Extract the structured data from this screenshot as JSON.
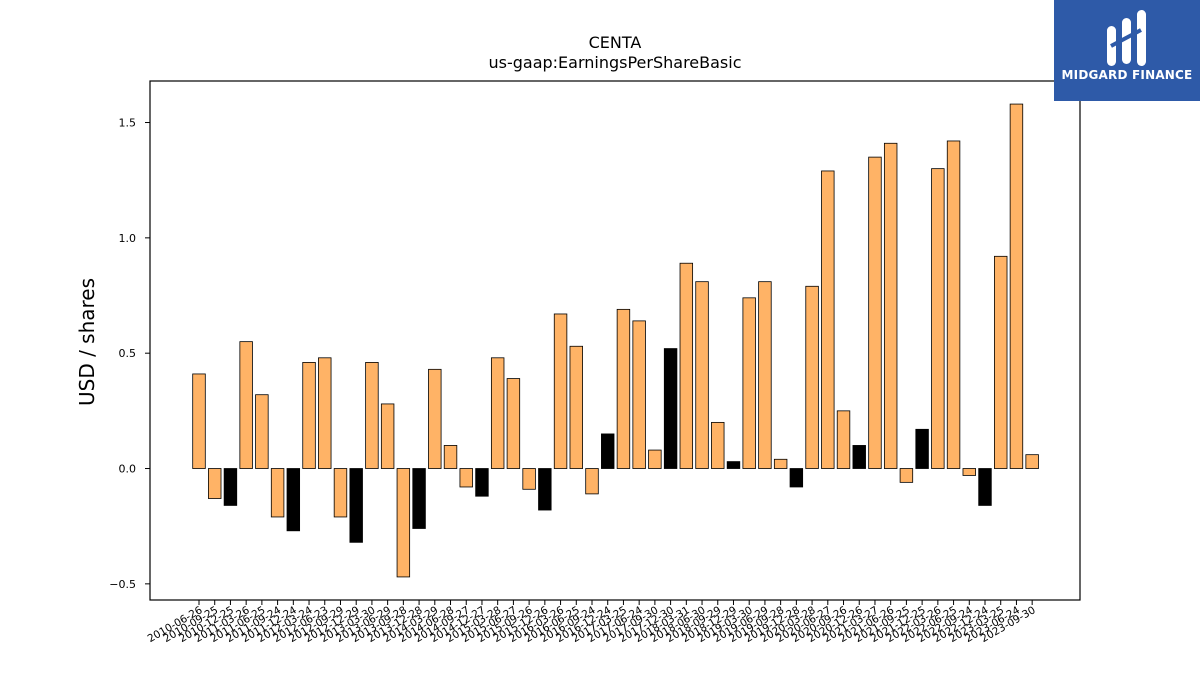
{
  "brand": {
    "name": "MIDGARD FINANCE"
  },
  "chart_data": {
    "type": "bar",
    "title": "CENTA",
    "subtitle": "us-gaap:EarningsPerShareBasic",
    "xlabel": "",
    "ylabel": "USD / shares",
    "ylim": [
      -0.57,
      1.68
    ],
    "yticks": [
      -0.5,
      0.0,
      0.5,
      1.0,
      1.5
    ],
    "ytick_labels": [
      "−0.5",
      "0.0",
      "0.5",
      "1.0",
      "1.5"
    ],
    "grid": false,
    "colors": {
      "default": "#ffb366",
      "highlight": "#000000",
      "edge": "#000000"
    },
    "categories": [
      "2010-06-26",
      "2010-09-25",
      "2010-12-25",
      "2011-03-26",
      "2011-06-25",
      "2011-09-24",
      "2011-12-24",
      "2012-03-24",
      "2012-06-23",
      "2012-09-29",
      "2012-12-29",
      "2013-03-30",
      "2013-06-29",
      "2013-09-28",
      "2013-12-28",
      "2014-03-29",
      "2014-06-28",
      "2014-09-27",
      "2014-12-27",
      "2015-03-28",
      "2015-06-27",
      "2015-09-26",
      "2015-12-26",
      "2016-03-26",
      "2016-06-25",
      "2016-09-24",
      "2016-12-24",
      "2017-03-25",
      "2017-06-24",
      "2017-09-30",
      "2017-12-30",
      "2018-03-31",
      "2018-06-30",
      "2018-09-29",
      "2018-12-29",
      "2019-03-30",
      "2019-06-29",
      "2019-09-28",
      "2019-12-28",
      "2020-03-28",
      "2020-06-27",
      "2020-09-26",
      "2020-12-26",
      "2021-03-27",
      "2021-06-26",
      "2021-09-25",
      "2021-12-25",
      "2022-03-26",
      "2022-06-25",
      "2022-09-24",
      "2022-12-24",
      "2023-03-25",
      "2023-06-24",
      "2023-09-30"
    ],
    "values": [
      0.41,
      -0.13,
      -0.16,
      0.55,
      0.32,
      -0.21,
      -0.27,
      0.46,
      0.48,
      -0.21,
      -0.32,
      0.46,
      0.28,
      -0.47,
      -0.26,
      0.43,
      0.1,
      -0.08,
      -0.12,
      0.48,
      0.39,
      -0.09,
      -0.18,
      0.67,
      0.53,
      -0.11,
      0.15,
      0.69,
      0.64,
      0.08,
      0.52,
      0.89,
      0.81,
      0.2,
      0.03,
      0.74,
      0.81,
      0.04,
      -0.08,
      0.79,
      1.29,
      0.25,
      0.1,
      1.35,
      1.41,
      -0.06,
      0.17,
      1.3,
      1.42,
      -0.03,
      -0.16,
      0.92,
      1.58,
      0.06
    ],
    "highlight": [
      false,
      false,
      true,
      false,
      false,
      false,
      true,
      false,
      false,
      false,
      true,
      false,
      false,
      false,
      true,
      false,
      false,
      false,
      true,
      false,
      false,
      false,
      true,
      false,
      false,
      false,
      true,
      false,
      false,
      false,
      true,
      false,
      false,
      false,
      true,
      false,
      false,
      false,
      true,
      false,
      false,
      false,
      true,
      false,
      false,
      false,
      true,
      false,
      false,
      false,
      true,
      false,
      false,
      false
    ]
  }
}
